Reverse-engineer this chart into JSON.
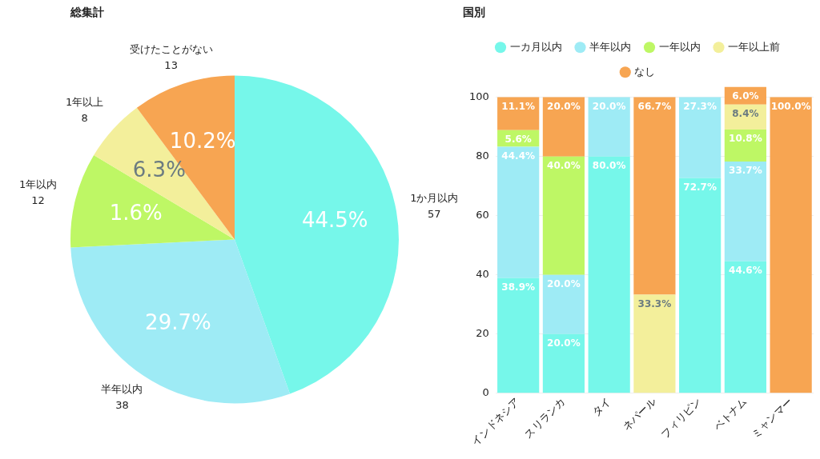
{
  "chart_data": [
    {
      "type": "pie",
      "title": "総集計",
      "categories": [
        "1か月以内",
        "半年以内",
        "1年以内",
        "1年以上",
        "受けたことがない"
      ],
      "values": [
        57,
        38,
        12,
        8,
        13
      ],
      "colors": [
        "#76f7ea",
        "#9eebf5",
        "#bef765",
        "#f3ef9b",
        "#f7a552"
      ],
      "annotations": [
        "44.5%",
        "29.7%",
        "1.6%",
        "6.3%",
        "10.2%"
      ],
      "data_labels": true,
      "legend": false
    },
    {
      "type": "bar",
      "title": "国別",
      "stacked": true,
      "categories": [
        "インドネシア",
        "スリランカ",
        "タイ",
        "ネパール",
        "フィリピン",
        "ベトナム",
        "ミャンマー"
      ],
      "series": [
        {
          "name": "一カ月以内",
          "color": "#76f7ea",
          "values": [
            38.9,
            20.0,
            80.0,
            null,
            72.7,
            44.6,
            null
          ],
          "value_labels": [
            "38.9%",
            "20.0%",
            "80.0%",
            null,
            "72.7%",
            "44.6%",
            null
          ]
        },
        {
          "name": "半年以内",
          "color": "#9eebf5",
          "values": [
            44.4,
            20.0,
            20.0,
            null,
            27.3,
            33.7,
            null
          ],
          "value_labels": [
            "44.4%",
            "20.0%",
            "20.0%",
            null,
            "27.3%",
            "33.7%",
            null
          ]
        },
        {
          "name": "一年以内",
          "color": "#bef765",
          "values": [
            5.6,
            40.0,
            null,
            null,
            null,
            10.8,
            null
          ],
          "value_labels": [
            "5.6%",
            "40.0%",
            null,
            null,
            null,
            "10.8%",
            null
          ]
        },
        {
          "name": "一年以上前",
          "color": "#f3ef9b",
          "values": [
            null,
            null,
            null,
            33.3,
            null,
            8.4,
            null
          ],
          "value_labels": [
            null,
            null,
            null,
            "33.3%",
            null,
            "8.4%",
            null
          ]
        },
        {
          "name": "なし",
          "color": "#f7a552",
          "values": [
            11.1,
            20.0,
            null,
            66.7,
            null,
            6.0,
            100.0
          ],
          "value_labels": [
            "11.1%",
            "20.0%",
            null,
            "66.7%",
            null,
            "6.0%",
            "100.0%"
          ]
        }
      ],
      "ylim": [
        0,
        104
      ],
      "yticks": [
        0,
        20,
        40,
        60,
        80,
        100
      ],
      "grid": "y",
      "legend": "top"
    }
  ]
}
